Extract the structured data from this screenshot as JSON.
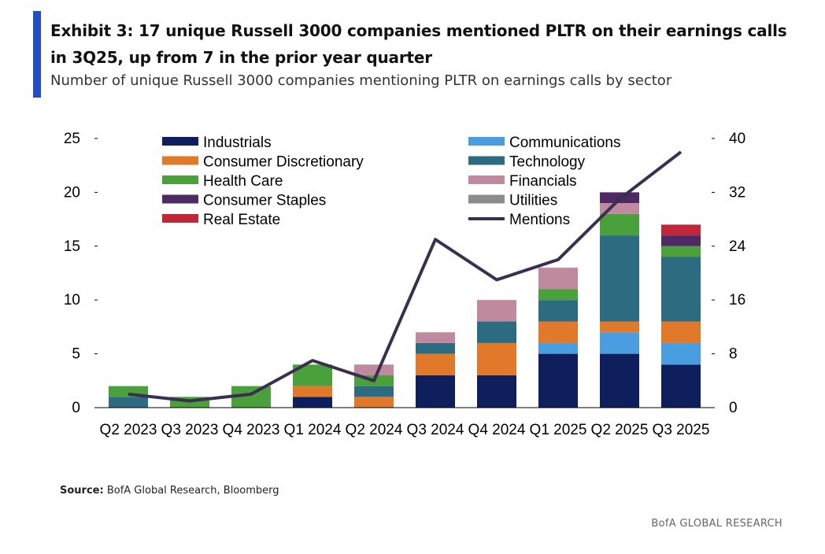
{
  "header": {
    "title": "Exhibit 3: 17 unique Russell 3000 companies mentioned PLTR on their earnings calls in 3Q25, up from 7 in the prior year quarter",
    "subtitle": "Number of unique Russell 3000 companies mentioning PLTR on earnings calls by sector"
  },
  "footer": {
    "source_label": "Source:",
    "source_text": "BofA Global Research, Bloomberg",
    "brand": "BofA GLOBAL RESEARCH"
  },
  "chart_data": {
    "type": "bar",
    "stacked": true,
    "categories": [
      "Q2 2023",
      "Q3 2023",
      "Q4 2023",
      "Q1 2024",
      "Q2 2024",
      "Q3 2024",
      "Q4 2024",
      "Q1 2025",
      "Q2 2025",
      "Q3 2025"
    ],
    "ylim": [
      0,
      25
    ],
    "y_ticks": [
      0,
      5,
      10,
      15,
      20,
      25
    ],
    "y2lim": [
      0,
      40
    ],
    "y2_ticks": [
      0,
      8,
      16,
      24,
      32,
      40
    ],
    "legend_placement": "top",
    "series": [
      {
        "name": "Industrials",
        "color": "#0f1f5e",
        "values": [
          0,
          0,
          0,
          1,
          0,
          3,
          3,
          5,
          5,
          4
        ]
      },
      {
        "name": "Communications",
        "color": "#4a9ee0",
        "values": [
          0,
          0,
          0,
          0,
          0,
          0,
          0,
          1,
          2,
          2
        ]
      },
      {
        "name": "Consumer Discretionary",
        "color": "#e07a2a",
        "values": [
          0,
          0,
          0,
          1,
          1,
          2,
          3,
          2,
          1,
          2
        ]
      },
      {
        "name": "Technology",
        "color": "#2d6b80",
        "values": [
          1,
          0,
          0,
          0,
          1,
          1,
          2,
          2,
          8,
          6
        ]
      },
      {
        "name": "Health Care",
        "color": "#4aa03a",
        "values": [
          1,
          1,
          2,
          2,
          1,
          0,
          0,
          1,
          2,
          1
        ]
      },
      {
        "name": "Financials",
        "color": "#bf8aa0",
        "values": [
          0,
          0,
          0,
          0,
          1,
          1,
          2,
          2,
          1,
          0
        ]
      },
      {
        "name": "Consumer Staples",
        "color": "#4d2a63",
        "values": [
          0,
          0,
          0,
          0,
          0,
          0,
          0,
          0,
          1,
          1
        ]
      },
      {
        "name": "Utilities",
        "color": "#8c8c8c",
        "values": [
          0,
          0,
          0,
          0,
          0,
          0,
          0,
          0,
          0,
          0
        ]
      },
      {
        "name": "Real Estate",
        "color": "#c0283a",
        "values": [
          0,
          0,
          0,
          0,
          0,
          0,
          0,
          0,
          0,
          1
        ]
      }
    ],
    "line_series": {
      "name": "Mentions",
      "color": "#3a2f4f",
      "axis": "right",
      "values": [
        2,
        1,
        2,
        7,
        4,
        25,
        19,
        22,
        31,
        38
      ]
    }
  }
}
